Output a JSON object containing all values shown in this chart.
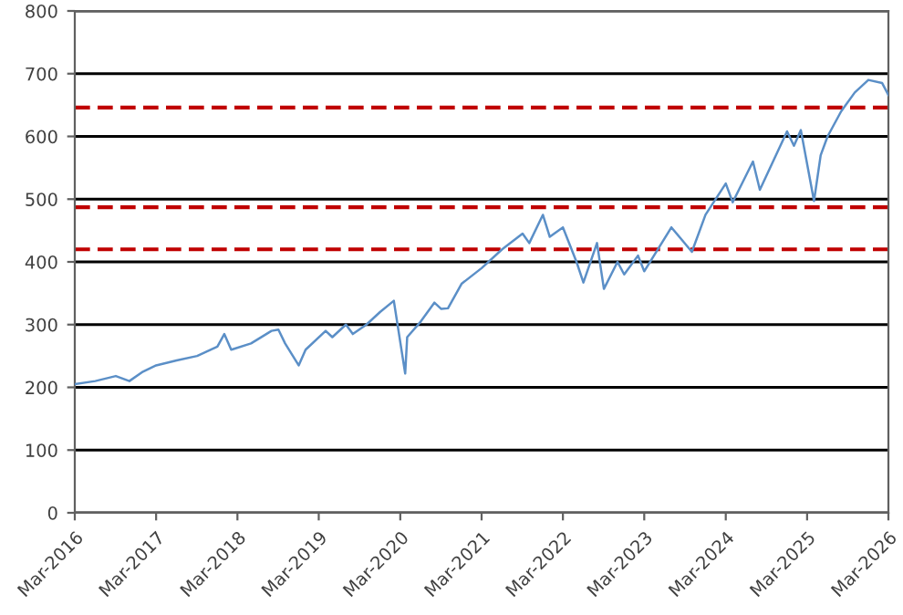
{
  "chart_data": {
    "type": "line",
    "x": [
      "2016-03",
      "2016-06",
      "2016-09",
      "2016-11",
      "2017-01",
      "2017-03",
      "2017-06",
      "2017-09",
      "2017-12",
      "2018-01",
      "2018-02",
      "2018-05",
      "2018-08",
      "2018-09",
      "2018-10",
      "2018-12",
      "2019-01",
      "2019-04",
      "2019-05",
      "2019-07",
      "2019-08",
      "2019-10",
      "2019-12",
      "2020-02",
      "2020-03-23",
      "2020-04",
      "2020-06",
      "2020-08",
      "2020-09",
      "2020-10",
      "2020-12",
      "2021-03",
      "2021-06",
      "2021-09",
      "2021-10",
      "2021-12",
      "2022-01",
      "2022-03",
      "2022-05",
      "2022-06",
      "2022-08",
      "2022-09",
      "2022-11",
      "2022-12",
      "2023-02",
      "2023-03",
      "2023-07",
      "2023-10",
      "2023-12",
      "2024-03",
      "2024-04",
      "2024-07",
      "2024-08",
      "2024-12",
      "2025-01",
      "2025-02",
      "2025-04",
      "2025-05",
      "2025-06",
      "2025-08",
      "2025-10",
      "2025-12",
      "2026-02",
      "2026-03"
    ],
    "series": [
      {
        "color": "#5b8fc7",
        "values": [
          205,
          210,
          218,
          210,
          225,
          235,
          243,
          250,
          265,
          285,
          260,
          270,
          290,
          292,
          270,
          235,
          260,
          290,
          280,
          300,
          285,
          300,
          320,
          338,
          222,
          280,
          305,
          335,
          325,
          326,
          365,
          390,
          420,
          445,
          430,
          475,
          440,
          455,
          400,
          367,
          430,
          357,
          400,
          380,
          410,
          385,
          455,
          416,
          475,
          525,
          495,
          560,
          515,
          608,
          585,
          610,
          497,
          570,
          600,
          640,
          670,
          690,
          685,
          666
        ]
      }
    ],
    "xlim": [
      "2016-03",
      "2026-03"
    ],
    "xticks": [
      {
        "value": "2016-03",
        "label": "Mar-2016"
      },
      {
        "value": "2017-03",
        "label": "Mar-2017"
      },
      {
        "value": "2018-03",
        "label": "Mar-2018"
      },
      {
        "value": "2019-03",
        "label": "Mar-2019"
      },
      {
        "value": "2020-03",
        "label": "Mar-2020"
      },
      {
        "value": "2021-03",
        "label": "Mar-2021"
      },
      {
        "value": "2022-03",
        "label": "Mar-2022"
      },
      {
        "value": "2023-03",
        "label": "Mar-2023"
      },
      {
        "value": "2024-03",
        "label": "Mar-2024"
      },
      {
        "value": "2025-03",
        "label": "Mar-2025"
      },
      {
        "value": "2026-03",
        "label": "Mar-2026"
      }
    ],
    "ylim": [
      0,
      800
    ],
    "yticks": [
      0,
      100,
      200,
      300,
      400,
      500,
      600,
      700,
      800
    ],
    "grid": "y",
    "ref_lines": [
      {
        "axis": "y",
        "value": 646,
        "color": "#c00000",
        "line_style": "dashed"
      },
      {
        "axis": "y",
        "value": 487,
        "color": "#c00000",
        "line_style": "dashed"
      },
      {
        "axis": "y",
        "value": 420,
        "color": "#c00000",
        "line_style": "dashed"
      }
    ]
  }
}
